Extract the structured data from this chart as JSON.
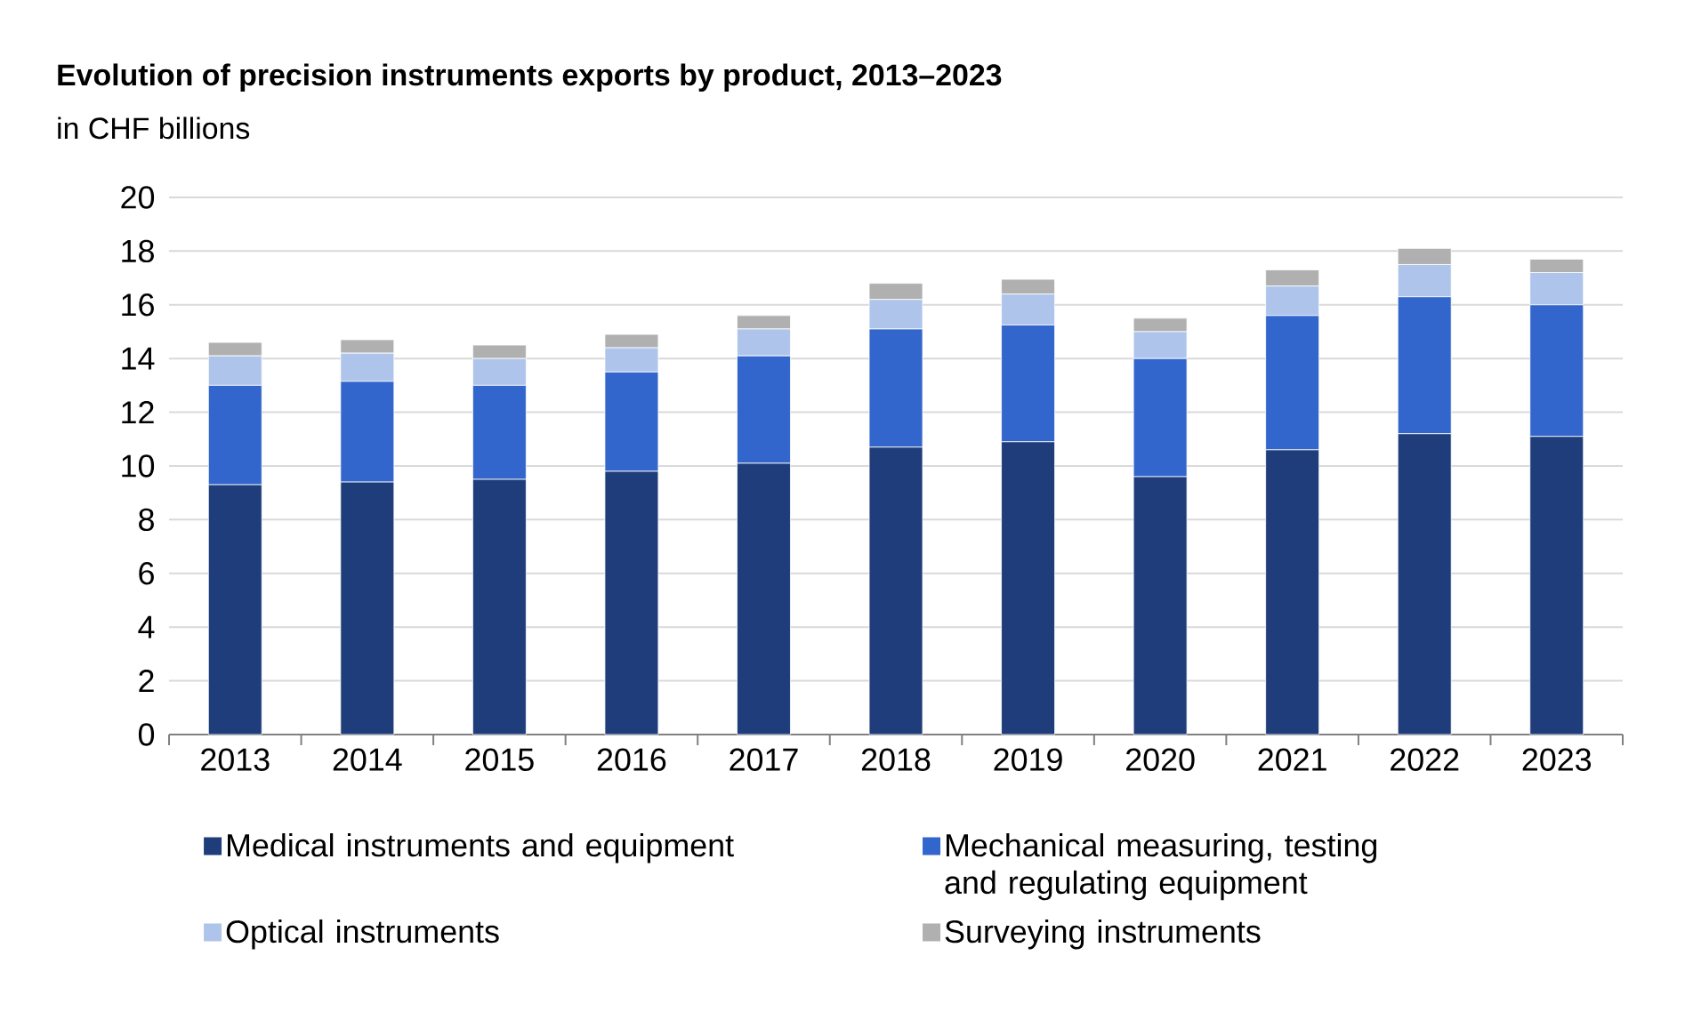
{
  "chart_data": {
    "type": "bar",
    "stacked": true,
    "title": "Evolution of precision instruments exports by product, 2013–2023",
    "subtitle": "in CHF billions",
    "categories": [
      "2013",
      "2014",
      "2015",
      "2016",
      "2017",
      "2018",
      "2019",
      "2020",
      "2021",
      "2022",
      "2023"
    ],
    "series": [
      {
        "name": "Medical instruments and equipment",
        "color": "#1f3d7a",
        "values": [
          9.3,
          9.4,
          9.5,
          9.8,
          10.1,
          10.7,
          10.9,
          9.6,
          10.6,
          11.2,
          11.1
        ]
      },
      {
        "name": "Mechanical measuring, testing and regulating equipment",
        "color": "#3366cc",
        "values": [
          3.7,
          3.75,
          3.5,
          3.7,
          4.0,
          4.4,
          4.35,
          4.4,
          5.0,
          5.1,
          4.9
        ]
      },
      {
        "name": "Optical instruments",
        "color": "#aec4ea",
        "values": [
          1.1,
          1.05,
          1.0,
          0.9,
          1.0,
          1.1,
          1.15,
          1.0,
          1.1,
          1.2,
          1.2
        ]
      },
      {
        "name": "Surveying instruments",
        "color": "#b0b0b0",
        "values": [
          0.5,
          0.5,
          0.5,
          0.5,
          0.5,
          0.6,
          0.55,
          0.5,
          0.6,
          0.6,
          0.5
        ]
      }
    ],
    "ylim": [
      0,
      20
    ],
    "yticks": [
      0,
      2,
      4,
      6,
      8,
      10,
      12,
      14,
      16,
      18,
      20
    ],
    "grid": "y",
    "legend": "bottom"
  }
}
